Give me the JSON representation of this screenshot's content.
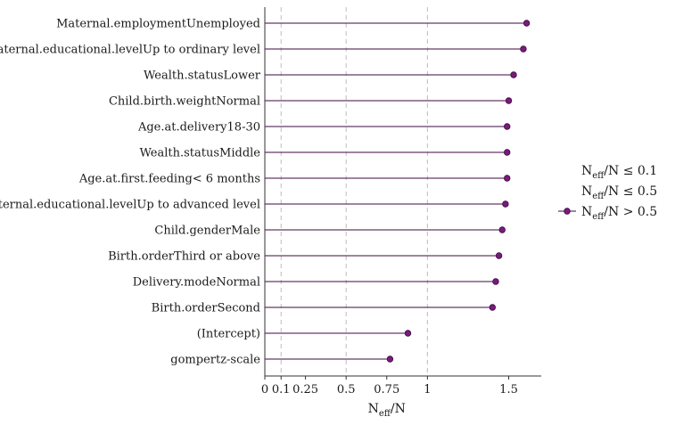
{
  "chart_data": {
    "type": "lollipop",
    "parameters": [
      "Maternal.employmentUnemployed",
      "Maternal.educational.levelUp to ordinary level",
      "Wealth.statusLower",
      "Child.birth.weightNormal",
      "Age.at.delivery18-30",
      "Wealth.statusMiddle",
      "Age.at.first.feeding< 6 months",
      "Maternal.educational.levelUp to advanced level",
      "Child.genderMale",
      "Birth.orderThird or above",
      "Delivery.modeNormal",
      "Birth.orderSecond",
      "(Intercept)",
      "gompertz-scale"
    ],
    "values": [
      1.61,
      1.59,
      1.53,
      1.5,
      1.49,
      1.49,
      1.49,
      1.48,
      1.46,
      1.44,
      1.42,
      1.4,
      0.88,
      0.77
    ],
    "x_ticks": [
      0,
      0.1,
      0.25,
      0.5,
      0.75,
      1,
      1.5
    ],
    "x_tick_labels": [
      "0",
      "0.1",
      "0.25",
      "0.5",
      "0.75",
      "1",
      "1.5"
    ],
    "reference_lines": [
      0.1,
      0.5,
      1
    ],
    "xlim": [
      0,
      1.7
    ],
    "xlabel": {
      "main": "N",
      "sub": "eff",
      "rest": "/N"
    },
    "legend": [
      {
        "main": "N",
        "sub": "eff",
        "rest": "/N ≤ 0.1",
        "has_marker": false
      },
      {
        "main": "N",
        "sub": "eff",
        "rest": "/N ≤ 0.5",
        "has_marker": false
      },
      {
        "main": "N",
        "sub": "eff",
        "rest": "/N > 0.5",
        "has_marker": true
      }
    ],
    "legend_position": "right",
    "colors": {
      "point_fill": "#7a1a7e",
      "point_stroke": "#3d0a40",
      "segment": "#3d0a40",
      "reference_line": "#bdbdbd"
    }
  }
}
